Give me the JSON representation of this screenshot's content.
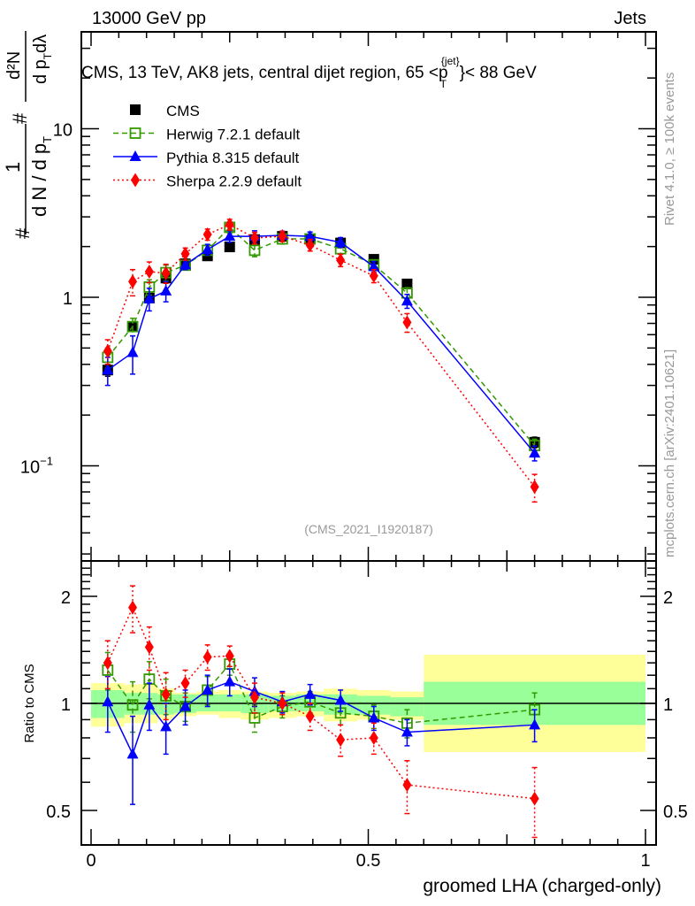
{
  "header": {
    "left_label": "13000 GeV pp",
    "right_label": "Jets"
  },
  "side_labels": {
    "rivet": "Rivet 4.1.0, ≥ 100k events",
    "mcplots": "mcplots.cern.ch [arXiv:2401.10621]"
  },
  "watermark": "(CMS_2021_I1920187)",
  "chart_data": [
    {
      "type": "scatter",
      "panel": "main",
      "title": "CMS, 13 TeV, AK8 jets, central dijet region, 65 <p_T^{jet}< 88 GeV",
      "title_parts": {
        "before": "CMS, 13 TeV, AK8 jets, central dijet region, 65 <p",
        "sup": "{jet}",
        "sub": "T",
        "after": "}< 88 GeV"
      },
      "ylabel": "1/dN/dp_T  d²N/dp_T dλ",
      "ylabel_parts": {
        "one": "1",
        "hash": "#",
        "den": "d N / d p",
        "den_sub": "T",
        "num": "d²N",
        "num2": "d p",
        "num2_sub": "T",
        "lam": "dλ"
      },
      "xlabel": "",
      "yscale": "log",
      "xlim": [
        0,
        1
      ],
      "ylim": [
        0.028,
        22
      ],
      "yticks": [
        {
          "value": 0.1,
          "label": "10",
          "exp": "−1"
        },
        {
          "value": 1,
          "label": "1",
          "exp": ""
        },
        {
          "value": 10,
          "label": "10",
          "exp": ""
        }
      ],
      "bin_edges": [
        0,
        0.06,
        0.09,
        0.12,
        0.15,
        0.19,
        0.23,
        0.27,
        0.32,
        0.37,
        0.42,
        0.48,
        0.54,
        0.6,
        1.0
      ],
      "x": [
        0.03,
        0.075,
        0.105,
        0.135,
        0.17,
        0.21,
        0.25,
        0.295,
        0.345,
        0.395,
        0.45,
        0.51,
        0.57,
        0.8
      ],
      "series": [
        {
          "name": "CMS",
          "color": "#000000",
          "marker": "square-filled",
          "line": "none",
          "values": [
            0.37,
            0.67,
            0.99,
            1.3,
            1.58,
            1.76,
            1.99,
            2.2,
            2.3,
            2.22,
            2.1,
            1.68,
            1.2,
            0.138
          ],
          "err": [
            0.03,
            0.04,
            0.05,
            0.06,
            0.06,
            0.07,
            0.08,
            0.08,
            0.08,
            0.08,
            0.08,
            0.07,
            0.05,
            0.01
          ]
        },
        {
          "name": "Herwig 7.2.1 default",
          "color": "#339900",
          "marker": "square-open",
          "line": "dashed",
          "values": [
            0.44,
            0.67,
            1.15,
            1.4,
            1.55,
            1.9,
            2.6,
            1.9,
            2.22,
            2.22,
            1.94,
            1.56,
            1.06,
            0.132
          ],
          "err": [
            0.06,
            0.08,
            0.12,
            0.15,
            0.1,
            0.12,
            0.2,
            0.16,
            0.15,
            0.15,
            0.14,
            0.1,
            0.08,
            0.012
          ]
        },
        {
          "name": "Pythia 8.315 default",
          "color": "#0000ff",
          "marker": "triangle",
          "line": "solid",
          "values": [
            0.37,
            0.47,
            0.98,
            1.09,
            1.56,
            1.92,
            2.3,
            2.3,
            2.33,
            2.3,
            2.12,
            1.52,
            0.95,
            0.119
          ],
          "err": [
            0.07,
            0.12,
            0.15,
            0.15,
            0.1,
            0.14,
            0.18,
            0.18,
            0.14,
            0.14,
            0.14,
            0.11,
            0.09,
            0.012
          ]
        },
        {
          "name": "Sherpa 2.2.9 default",
          "color": "#ff0000",
          "marker": "diamond",
          "line": "dotted",
          "values": [
            0.48,
            1.24,
            1.42,
            1.39,
            1.81,
            2.36,
            2.7,
            2.25,
            2.3,
            2.04,
            1.66,
            1.34,
            0.71,
            0.075
          ],
          "err": [
            0.08,
            0.22,
            0.2,
            0.18,
            0.15,
            0.18,
            0.2,
            0.18,
            0.16,
            0.16,
            0.14,
            0.12,
            0.09,
            0.014
          ]
        }
      ],
      "legend": {
        "placement": "top-left",
        "entries": [
          "CMS",
          "Herwig 7.2.1 default",
          "Pythia 8.315 default",
          "Sherpa 2.2.9 default"
        ]
      }
    },
    {
      "type": "scatter",
      "panel": "ratio",
      "xlabel": "groomed LHA (charged-only)",
      "ylabel": "Ratio to CMS",
      "yscale": "log",
      "xlim": [
        0,
        1
      ],
      "ylim": [
        0.42,
        2.4
      ],
      "xticks": [
        {
          "value": 0,
          "label": "0"
        },
        {
          "value": 0.5,
          "label": "0.5"
        },
        {
          "value": 1,
          "label": "1"
        }
      ],
      "yticks": [
        {
          "value": 0.5,
          "label": "0.5"
        },
        {
          "value": 1,
          "label": "1"
        },
        {
          "value": 2,
          "label": "2"
        }
      ],
      "reference_line": 1,
      "bands": {
        "bin_edges": [
          0,
          0.06,
          0.09,
          0.12,
          0.15,
          0.19,
          0.23,
          0.27,
          0.32,
          0.37,
          0.42,
          0.48,
          0.54,
          0.6,
          1.0
        ],
        "stat_color": "#99ff99",
        "total_color": "#ffff99",
        "stat_lo": [
          0.91,
          0.93,
          0.93,
          0.93,
          0.94,
          0.95,
          0.95,
          0.94,
          0.95,
          0.95,
          0.93,
          0.93,
          0.92,
          0.87
        ],
        "stat_hi": [
          1.09,
          1.07,
          1.07,
          1.06,
          1.06,
          1.06,
          1.06,
          1.06,
          1.05,
          1.06,
          1.06,
          1.05,
          1.04,
          1.15
        ],
        "total_lo": [
          0.86,
          0.88,
          0.88,
          0.9,
          0.92,
          0.93,
          0.91,
          0.9,
          0.91,
          0.92,
          0.89,
          0.9,
          0.9,
          0.73
        ],
        "total_hi": [
          1.14,
          1.13,
          1.13,
          1.1,
          1.07,
          1.08,
          1.09,
          1.08,
          1.07,
          1.08,
          1.1,
          1.09,
          1.08,
          1.37
        ]
      },
      "x": [
        0.03,
        0.075,
        0.105,
        0.135,
        0.17,
        0.21,
        0.25,
        0.295,
        0.345,
        0.395,
        0.45,
        0.51,
        0.57,
        0.8
      ],
      "series": [
        {
          "name": "Herwig 7.2.1 default",
          "color": "#339900",
          "marker": "square-open",
          "line": "dashed",
          "values": [
            1.24,
            0.99,
            1.17,
            1.05,
            0.98,
            1.09,
            1.29,
            0.91,
            0.98,
            1.01,
            0.94,
            0.92,
            0.88,
            0.96
          ],
          "err": [
            0.15,
            0.16,
            0.14,
            0.12,
            0.09,
            0.1,
            0.09,
            0.08,
            0.07,
            0.07,
            0.07,
            0.07,
            0.08,
            0.11
          ]
        },
        {
          "name": "Pythia 8.315 default",
          "color": "#0000ff",
          "marker": "triangle",
          "line": "solid",
          "values": [
            1.01,
            0.72,
            0.99,
            0.86,
            0.98,
            1.09,
            1.15,
            1.08,
            1.01,
            1.06,
            1.02,
            0.91,
            0.83,
            0.87
          ],
          "err": [
            0.18,
            0.2,
            0.15,
            0.14,
            0.11,
            0.11,
            0.1,
            0.1,
            0.07,
            0.07,
            0.07,
            0.07,
            0.07,
            0.09
          ]
        },
        {
          "name": "Sherpa 2.2.9 default",
          "color": "#ff0000",
          "marker": "diamond",
          "line": "dotted",
          "values": [
            1.3,
            1.86,
            1.44,
            1.06,
            1.14,
            1.35,
            1.36,
            1.04,
            1.0,
            0.92,
            0.79,
            0.8,
            0.59,
            0.54
          ],
          "err": [
            0.2,
            0.28,
            0.2,
            0.16,
            0.1,
            0.11,
            0.09,
            0.1,
            0.07,
            0.08,
            0.08,
            0.08,
            0.1,
            0.12
          ]
        }
      ]
    }
  ]
}
